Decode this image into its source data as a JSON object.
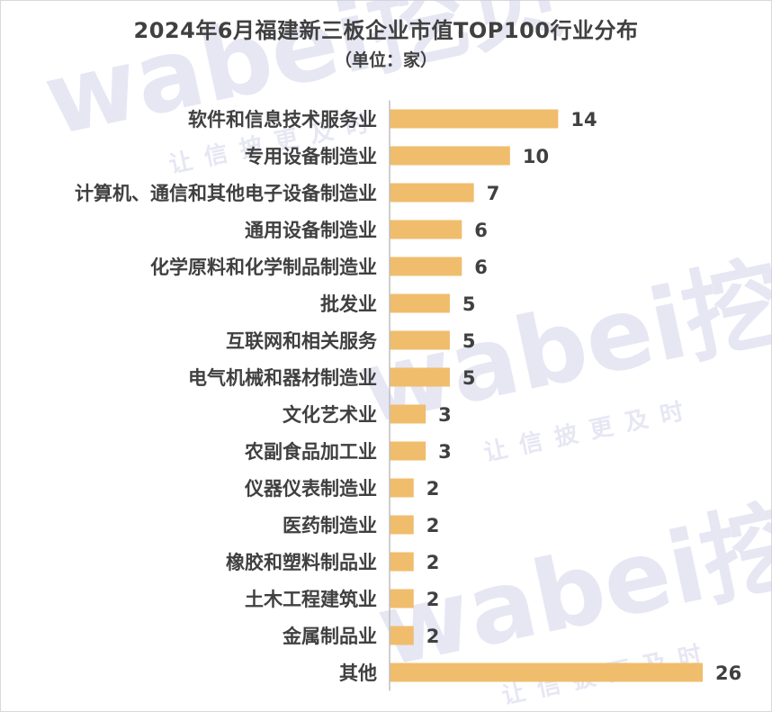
{
  "chart_data": {
    "type": "bar",
    "orientation": "horizontal",
    "title": "2024年6月福建新三板企业市值TOP100行业分布",
    "subtitle": "（单位：家）",
    "categories": [
      "软件和信息技术服务业",
      "专用设备制造业",
      "计算机、通信和其他电子设备制造业",
      "通用设备制造业",
      "化学原料和化学制品制造业",
      "批发业",
      "互联网和相关服务",
      "电气机械和器材制造业",
      "文化艺术业",
      "农副食品加工业",
      "仪器仪表制造业",
      "医药制造业",
      "橡胶和塑料制品业",
      "土木工程建筑业",
      "金属制品业",
      "其他"
    ],
    "values": [
      14,
      10,
      7,
      6,
      6,
      5,
      5,
      5,
      3,
      3,
      2,
      2,
      2,
      2,
      2,
      26
    ],
    "xlim": [
      0,
      26
    ],
    "grid": false,
    "legend": "none",
    "bar_color": "#f0bd6d",
    "axis_color": "#bfbfbf",
    "text_color": "#404040"
  },
  "watermark": {
    "brand": "wabei",
    "brand_cn": "挖贝",
    "slogan": "让信披更及时",
    "color": "#c9cce6"
  }
}
